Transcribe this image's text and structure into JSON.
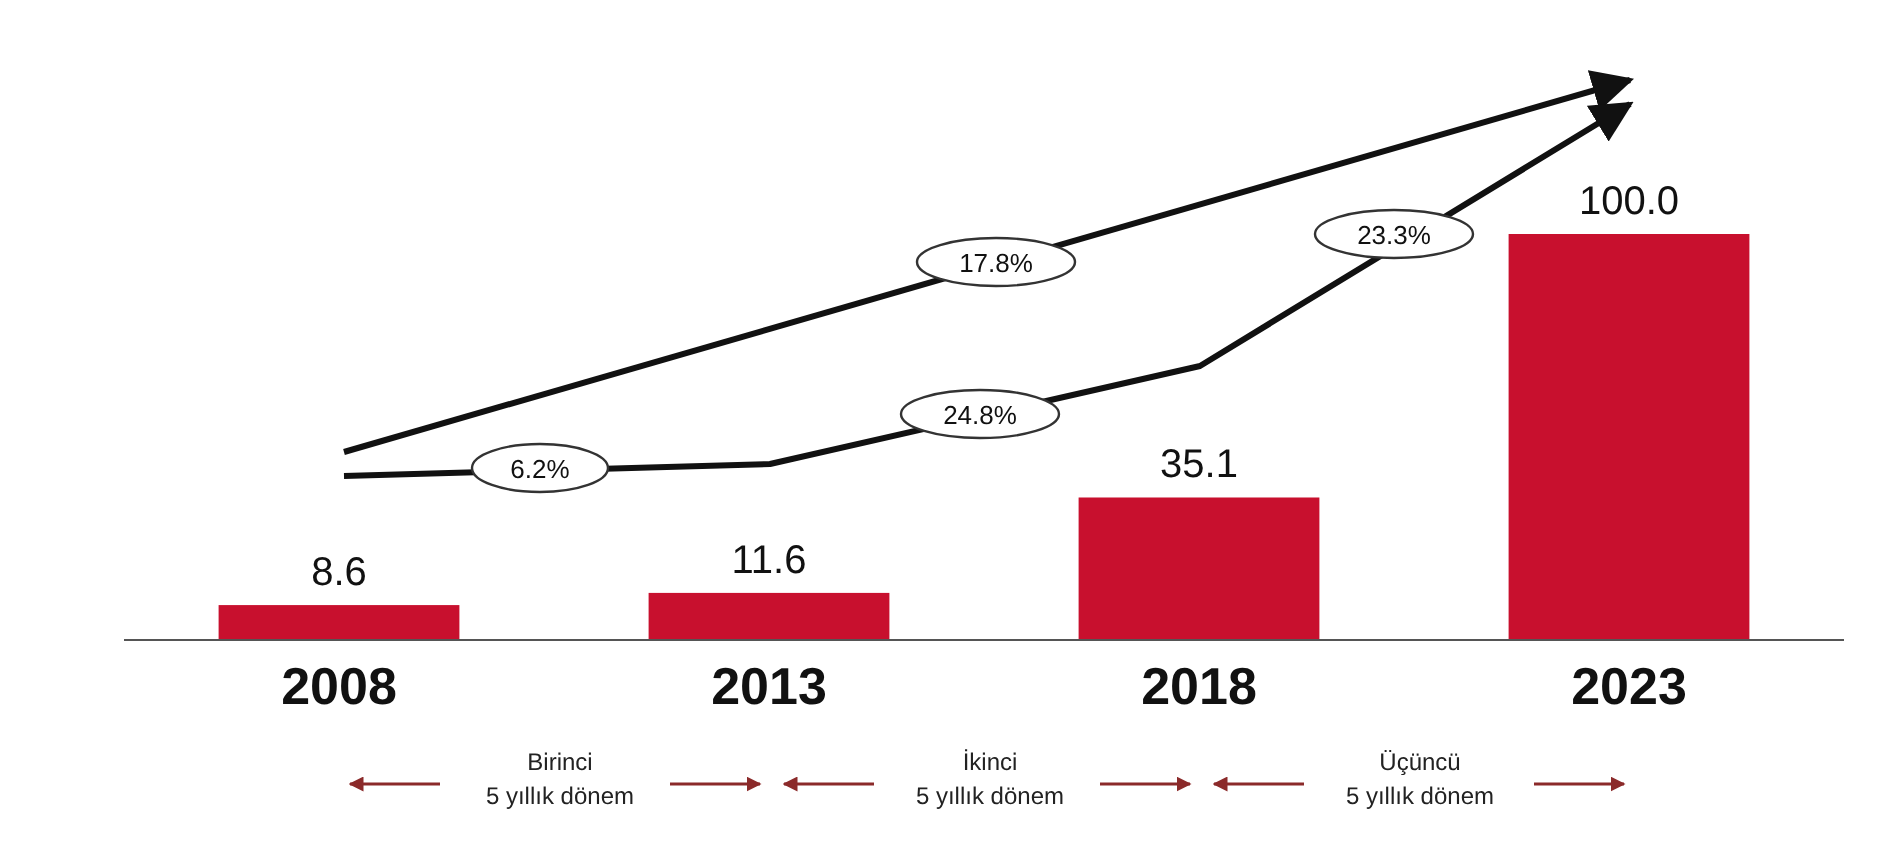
{
  "chart_data": {
    "type": "bar",
    "categories": [
      "2008",
      "2013",
      "2018",
      "2023"
    ],
    "values": [
      8.6,
      11.6,
      35.1,
      100.0
    ],
    "value_labels": [
      "8.6",
      "11.6",
      "35.1",
      "100.0"
    ],
    "color": "#c8102e",
    "annotations": [
      "17.8%",
      "6.2%",
      "24.8%",
      "23.3%",
      "Birinci\n5 yıllık dönem",
      "İkinci\n5 yıllık dönem",
      "Üçüncü\n5 yıllık dönem"
    ]
  }
}
